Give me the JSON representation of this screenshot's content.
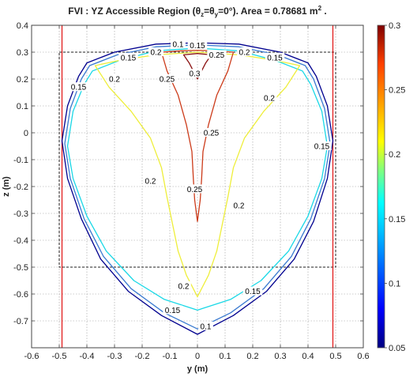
{
  "chart_data": {
    "type": "contour",
    "title_main": "FVI : YZ Accessible Region (θ",
    "title_sub1": "z",
    "title_mid": "=θ",
    "title_sub2": "y",
    "title_rest": "=0°). Area = 0.78681 m",
    "title_sup": "2",
    "title_end": " .",
    "xlabel": "y (m)",
    "ylabel": "z (m)",
    "xlim": [
      -0.6,
      0.6
    ],
    "ylim": [
      -0.8,
      0.4
    ],
    "xticks": [
      "-0.6",
      "-0.5",
      "-0.4",
      "-0.3",
      "-0.2",
      "-0.1",
      "0",
      "0.1",
      "0.2",
      "0.3",
      "0.4",
      "0.5",
      "0.6"
    ],
    "yticks": [
      "-0.7",
      "-0.6",
      "-0.5",
      "-0.4",
      "-0.3",
      "-0.2",
      "-0.1",
      "0",
      "0.1",
      "0.2",
      "0.3",
      "0.4"
    ],
    "grid": true,
    "colorbar": {
      "range": [
        0.05,
        0.3
      ],
      "ticks": [
        "0.05",
        "0.1",
        "0.15",
        "0.2",
        "0.25",
        "0.3"
      ]
    },
    "reference_lines": {
      "vertical_x": [
        -0.49,
        0.49
      ],
      "dashed_rect": {
        "x": [
          -0.5,
          0.5
        ],
        "y": [
          -0.5,
          0.3
        ]
      }
    },
    "contours": [
      {
        "level": 0.05,
        "color": "#00008f",
        "closed": true,
        "points": [
          [
            -0.49,
            -0.03
          ],
          [
            -0.47,
            -0.17
          ],
          [
            -0.42,
            -0.32
          ],
          [
            -0.35,
            -0.47
          ],
          [
            -0.25,
            -0.59
          ],
          [
            -0.13,
            -0.68
          ],
          [
            0.0,
            -0.75
          ],
          [
            0.13,
            -0.68
          ],
          [
            0.25,
            -0.59
          ],
          [
            0.35,
            -0.47
          ],
          [
            0.42,
            -0.33
          ],
          [
            0.47,
            -0.17
          ],
          [
            0.49,
            -0.03
          ],
          [
            0.47,
            0.1
          ],
          [
            0.43,
            0.21
          ],
          [
            0.4,
            0.26
          ],
          [
            0.3,
            0.3
          ],
          [
            0.15,
            0.33
          ],
          [
            0.0,
            0.335
          ],
          [
            -0.15,
            0.33
          ],
          [
            -0.3,
            0.3
          ],
          [
            -0.4,
            0.26
          ],
          [
            -0.43,
            0.21
          ],
          [
            -0.47,
            0.1
          ]
        ]
      },
      {
        "level": 0.1,
        "color": "#3a7ad0",
        "closed": true,
        "points": [
          [
            -0.48,
            -0.04
          ],
          [
            -0.46,
            -0.17
          ],
          [
            -0.41,
            -0.32
          ],
          [
            -0.34,
            -0.46
          ],
          [
            -0.24,
            -0.58
          ],
          [
            -0.12,
            -0.67
          ],
          [
            0.0,
            -0.73
          ],
          [
            0.12,
            -0.67
          ],
          [
            0.24,
            -0.58
          ],
          [
            0.34,
            -0.46
          ],
          [
            0.41,
            -0.32
          ],
          [
            0.46,
            -0.17
          ],
          [
            0.48,
            -0.04
          ],
          [
            0.46,
            0.09
          ],
          [
            0.42,
            0.2
          ],
          [
            0.39,
            0.25
          ],
          [
            0.29,
            0.29
          ],
          [
            0.15,
            0.32
          ],
          [
            0.0,
            0.327
          ],
          [
            -0.15,
            0.32
          ],
          [
            -0.29,
            0.29
          ],
          [
            -0.39,
            0.25
          ],
          [
            -0.42,
            0.2
          ],
          [
            -0.46,
            0.09
          ]
        ]
      },
      {
        "level": 0.15,
        "color": "#19d8e6",
        "closed": true,
        "points": [
          [
            -0.47,
            -0.05
          ],
          [
            -0.45,
            -0.17
          ],
          [
            -0.4,
            -0.31
          ],
          [
            -0.33,
            -0.44
          ],
          [
            -0.23,
            -0.55
          ],
          [
            -0.12,
            -0.62
          ],
          [
            0.0,
            -0.66
          ],
          [
            0.12,
            -0.62
          ],
          [
            0.23,
            -0.55
          ],
          [
            0.33,
            -0.44
          ],
          [
            0.4,
            -0.31
          ],
          [
            0.45,
            -0.17
          ],
          [
            0.47,
            -0.05
          ],
          [
            0.45,
            0.08
          ],
          [
            0.41,
            0.18
          ],
          [
            0.38,
            0.23
          ],
          [
            0.28,
            0.27
          ],
          [
            0.15,
            0.305
          ],
          [
            0.0,
            0.315
          ],
          [
            -0.15,
            0.305
          ],
          [
            -0.28,
            0.27
          ],
          [
            -0.38,
            0.23
          ],
          [
            -0.41,
            0.18
          ],
          [
            -0.45,
            0.08
          ]
        ]
      },
      {
        "level": 0.2,
        "color": "#eeee3a",
        "closed": true,
        "points": [
          [
            -0.37,
            0.25
          ],
          [
            -0.28,
            0.27
          ],
          [
            -0.15,
            0.29
          ],
          [
            0.0,
            0.3
          ],
          [
            0.15,
            0.29
          ],
          [
            0.28,
            0.27
          ],
          [
            0.37,
            0.25
          ],
          [
            0.32,
            0.17
          ],
          [
            0.24,
            0.08
          ],
          [
            0.17,
            -0.02
          ],
          [
            0.13,
            -0.13
          ],
          [
            0.11,
            -0.24
          ],
          [
            0.09,
            -0.34
          ],
          [
            0.07,
            -0.44
          ],
          [
            0.04,
            -0.53
          ],
          [
            0.0,
            -0.61
          ],
          [
            -0.04,
            -0.53
          ],
          [
            -0.07,
            -0.44
          ],
          [
            -0.09,
            -0.34
          ],
          [
            -0.11,
            -0.24
          ],
          [
            -0.13,
            -0.13
          ],
          [
            -0.17,
            -0.02
          ],
          [
            -0.24,
            0.08
          ],
          [
            -0.32,
            0.17
          ]
        ]
      },
      {
        "level": 0.25,
        "color": "#cc3b1a",
        "closed": true,
        "points": [
          [
            -0.13,
            0.3
          ],
          [
            -0.06,
            0.305
          ],
          [
            0.0,
            0.307
          ],
          [
            0.06,
            0.305
          ],
          [
            0.13,
            0.3
          ],
          [
            0.11,
            0.23
          ],
          [
            0.07,
            0.14
          ],
          [
            0.04,
            0.03
          ],
          [
            0.02,
            -0.07
          ],
          [
            0.015,
            -0.17
          ],
          [
            0.01,
            -0.25
          ],
          [
            0.0,
            -0.33
          ],
          [
            -0.01,
            -0.25
          ],
          [
            -0.015,
            -0.17
          ],
          [
            -0.02,
            -0.07
          ],
          [
            -0.04,
            0.03
          ],
          [
            -0.07,
            0.14
          ],
          [
            -0.11,
            0.23
          ]
        ]
      },
      {
        "level": 0.3,
        "color": "#8a1010",
        "closed": true,
        "points": [
          [
            -0.05,
            0.29
          ],
          [
            0.0,
            0.295
          ],
          [
            0.05,
            0.29
          ],
          [
            0.03,
            0.26
          ],
          [
            0.01,
            0.22
          ],
          [
            0.0,
            0.2
          ],
          [
            -0.01,
            0.22
          ],
          [
            -0.03,
            0.26
          ]
        ]
      }
    ],
    "contour_labels": [
      {
        "text": "0.1",
        "x": -0.07,
        "y": 0.33
      },
      {
        "text": "0.15",
        "x": 0.0,
        "y": 0.325
      },
      {
        "text": "0.25",
        "x": 0.07,
        "y": 0.29
      },
      {
        "text": "0.2",
        "x": -0.15,
        "y": 0.3
      },
      {
        "text": "0.2",
        "x": 0.17,
        "y": 0.3
      },
      {
        "text": "0.15",
        "x": -0.25,
        "y": 0.28
      },
      {
        "text": "0.15",
        "x": 0.28,
        "y": 0.28
      },
      {
        "text": "0.25",
        "x": -0.11,
        "y": 0.2
      },
      {
        "text": "0.3",
        "x": -0.01,
        "y": 0.22
      },
      {
        "text": "0.2",
        "x": -0.3,
        "y": 0.2
      },
      {
        "text": "0.2",
        "x": 0.26,
        "y": 0.13
      },
      {
        "text": "0.15",
        "x": -0.43,
        "y": 0.17
      },
      {
        "text": "0.15",
        "x": 0.45,
        "y": -0.05
      },
      {
        "text": "0.25",
        "x": 0.05,
        "y": 0.0
      },
      {
        "text": "0.2",
        "x": -0.17,
        "y": -0.18
      },
      {
        "text": "0.25",
        "x": -0.01,
        "y": -0.21
      },
      {
        "text": "0.2",
        "x": 0.15,
        "y": -0.27
      },
      {
        "text": "0.2",
        "x": -0.05,
        "y": -0.57
      },
      {
        "text": "0.15",
        "x": 0.2,
        "y": -0.59
      },
      {
        "text": "0.15",
        "x": -0.09,
        "y": -0.66
      },
      {
        "text": "0.1",
        "x": 0.03,
        "y": -0.72
      }
    ]
  }
}
